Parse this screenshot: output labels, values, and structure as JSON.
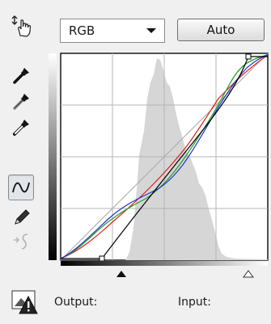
{
  "toolbar": {
    "tools": [
      {
        "name": "on-image-adjust-icon",
        "pressed": false
      },
      {
        "name": "sample-black-eyedropper-icon",
        "pressed": false
      },
      {
        "name": "sample-gray-eyedropper-icon",
        "pressed": false
      },
      {
        "name": "sample-white-eyedropper-icon",
        "pressed": false
      },
      {
        "name": "edit-points-curve-icon",
        "pressed": true
      },
      {
        "name": "draw-pencil-icon",
        "pressed": false
      },
      {
        "name": "smooth-curve-icon",
        "pressed": false,
        "disabled": true
      }
    ]
  },
  "channel_select": {
    "selected": "RGB",
    "options": [
      "RGB"
    ]
  },
  "auto_button": {
    "label": "Auto"
  },
  "curves": {
    "colors": {
      "composite": "#000000",
      "red": "#e0201a",
      "green": "#1ea01e",
      "blue": "#2030d0",
      "histogram": "#d6d6d6"
    },
    "black_input_slider": 0.21,
    "white_input_slider": 1.0
  },
  "footer": {
    "warning_icon": "clipping-warning-icon",
    "output_label": "Output:",
    "input_label": "Input:"
  }
}
